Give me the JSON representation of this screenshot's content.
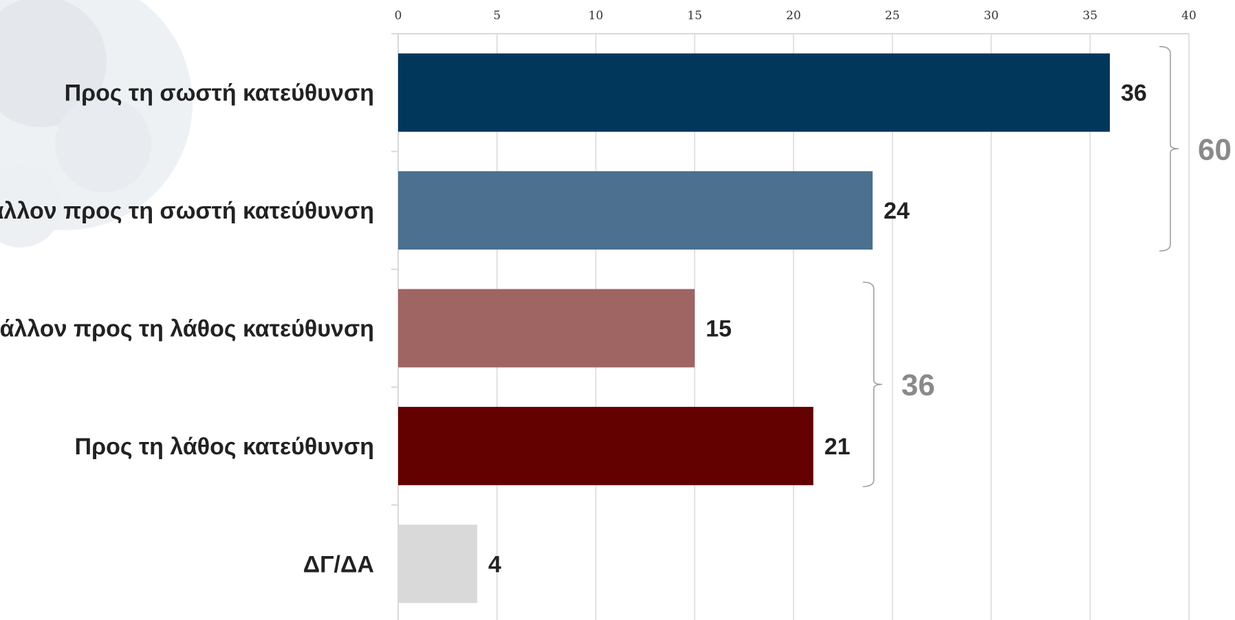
{
  "chart_data": {
    "type": "bar",
    "orientation": "horizontal",
    "categories": [
      "Προς τη σωστή κατεύθυνση",
      "Μάλλον προς τη σωστή κατεύθυνση",
      "Μάλλον προς τη λάθος κατεύθυνση",
      "Προς τη λάθος κατεύθυνση",
      "ΔΓ/ΔΑ"
    ],
    "values": [
      36,
      24,
      15,
      21,
      4
    ],
    "value_labels": [
      "36",
      "24",
      "15",
      "21",
      "4"
    ],
    "colors": [
      "#02375c",
      "#4b7090",
      "#9e6563",
      "#630000",
      "#d9d9d9"
    ],
    "xlim": [
      0,
      40
    ],
    "xticks": [
      0,
      5,
      10,
      15,
      20,
      25,
      30,
      35,
      40
    ],
    "xtick_labels": [
      "0",
      "5",
      "10",
      "15",
      "20",
      "25",
      "30",
      "35",
      "40"
    ],
    "x_axis_position": "top",
    "grid": true,
    "legend": "none",
    "groups": [
      {
        "total": "60",
        "members": [
          0,
          1
        ],
        "bracket_side": "right"
      },
      {
        "total": "36",
        "members": [
          2,
          3
        ],
        "bracket_side": "right"
      }
    ],
    "title": "",
    "xlabel": "",
    "ylabel": ""
  }
}
